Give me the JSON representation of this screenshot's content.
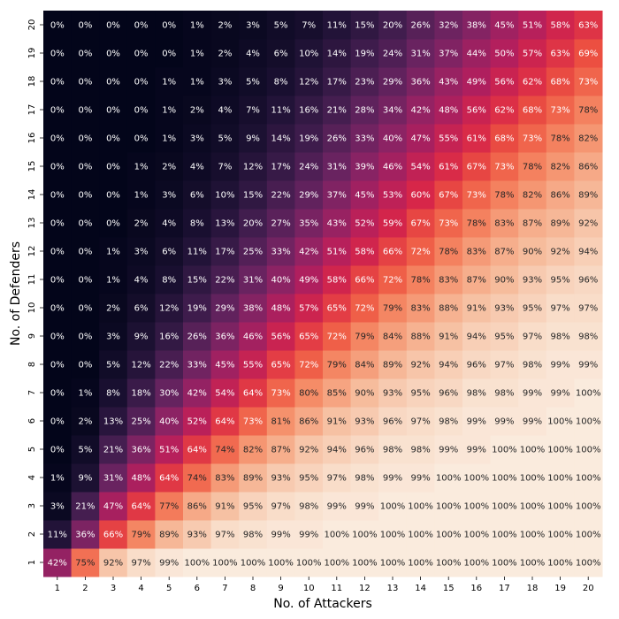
{
  "chart_data": {
    "type": "heatmap",
    "xlabel": "No. of Attackers",
    "ylabel": "No. of Defenders",
    "x_categories": [
      "1",
      "2",
      "3",
      "4",
      "5",
      "6",
      "7",
      "8",
      "9",
      "10",
      "11",
      "12",
      "13",
      "14",
      "15",
      "16",
      "17",
      "18",
      "19",
      "20"
    ],
    "y_categories": [
      "1",
      "2",
      "3",
      "4",
      "5",
      "6",
      "7",
      "8",
      "9",
      "10",
      "11",
      "12",
      "13",
      "14",
      "15",
      "16",
      "17",
      "18",
      "19",
      "20"
    ],
    "value_format": "percent",
    "colormap": "rocket",
    "vmin": 0,
    "vmax": 100,
    "values_by_defender": [
      [
        42,
        75,
        92,
        97,
        99,
        100,
        100,
        100,
        100,
        100,
        100,
        100,
        100,
        100,
        100,
        100,
        100,
        100,
        100,
        100
      ],
      [
        11,
        36,
        66,
        79,
        89,
        93,
        97,
        98,
        99,
        99,
        100,
        100,
        100,
        100,
        100,
        100,
        100,
        100,
        100,
        100
      ],
      [
        3,
        21,
        47,
        64,
        77,
        86,
        91,
        95,
        97,
        98,
        99,
        99,
        100,
        100,
        100,
        100,
        100,
        100,
        100,
        100
      ],
      [
        1,
        9,
        31,
        48,
        64,
        74,
        83,
        89,
        93,
        95,
        97,
        98,
        99,
        99,
        100,
        100,
        100,
        100,
        100,
        100
      ],
      [
        0,
        5,
        21,
        36,
        51,
        64,
        74,
        82,
        87,
        92,
        94,
        96,
        98,
        98,
        99,
        99,
        100,
        100,
        100,
        100
      ],
      [
        0,
        2,
        13,
        25,
        40,
        52,
        64,
        73,
        81,
        86,
        91,
        93,
        96,
        97,
        98,
        99,
        99,
        99,
        100,
        100
      ],
      [
        0,
        1,
        8,
        18,
        30,
        42,
        54,
        64,
        73,
        80,
        85,
        90,
        93,
        95,
        96,
        98,
        98,
        99,
        99,
        100
      ],
      [
        0,
        0,
        5,
        12,
        22,
        33,
        45,
        55,
        65,
        72,
        79,
        84,
        89,
        92,
        94,
        96,
        97,
        98,
        99,
        99
      ],
      [
        0,
        0,
        3,
        9,
        16,
        26,
        36,
        46,
        56,
        65,
        72,
        79,
        84,
        88,
        91,
        94,
        95,
        97,
        98,
        98
      ],
      [
        0,
        0,
        2,
        6,
        12,
        19,
        29,
        38,
        48,
        57,
        65,
        72,
        79,
        83,
        88,
        91,
        93,
        95,
        97,
        97
      ],
      [
        0,
        0,
        1,
        4,
        8,
        15,
        22,
        31,
        40,
        49,
        58,
        66,
        72,
        78,
        83,
        87,
        90,
        93,
        95,
        96
      ],
      [
        0,
        0,
        1,
        3,
        6,
        11,
        17,
        25,
        33,
        42,
        51,
        58,
        66,
        72,
        78,
        83,
        87,
        90,
        92,
        94
      ],
      [
        0,
        0,
        0,
        2,
        4,
        8,
        13,
        20,
        27,
        35,
        43,
        52,
        59,
        67,
        73,
        78,
        83,
        87,
        89,
        92
      ],
      [
        0,
        0,
        0,
        1,
        3,
        6,
        10,
        15,
        22,
        29,
        37,
        45,
        53,
        60,
        67,
        73,
        78,
        82,
        86,
        89
      ],
      [
        0,
        0,
        0,
        1,
        2,
        4,
        7,
        12,
        17,
        24,
        31,
        39,
        46,
        54,
        61,
        67,
        73,
        78,
        82,
        86
      ],
      [
        0,
        0,
        0,
        0,
        1,
        3,
        5,
        9,
        14,
        19,
        26,
        33,
        40,
        47,
        55,
        61,
        68,
        73,
        78,
        82
      ],
      [
        0,
        0,
        0,
        0,
        1,
        2,
        4,
        7,
        11,
        16,
        21,
        28,
        34,
        42,
        48,
        56,
        62,
        68,
        73,
        78
      ],
      [
        0,
        0,
        0,
        0,
        1,
        1,
        3,
        5,
        8,
        12,
        17,
        23,
        29,
        36,
        43,
        49,
        56,
        62,
        68,
        73
      ],
      [
        0,
        0,
        0,
        0,
        0,
        1,
        2,
        4,
        6,
        10,
        14,
        19,
        24,
        31,
        37,
        44,
        50,
        57,
        63,
        69
      ],
      [
        0,
        0,
        0,
        0,
        0,
        1,
        2,
        3,
        5,
        7,
        11,
        15,
        20,
        26,
        32,
        38,
        45,
        51,
        58,
        63
      ]
    ]
  }
}
